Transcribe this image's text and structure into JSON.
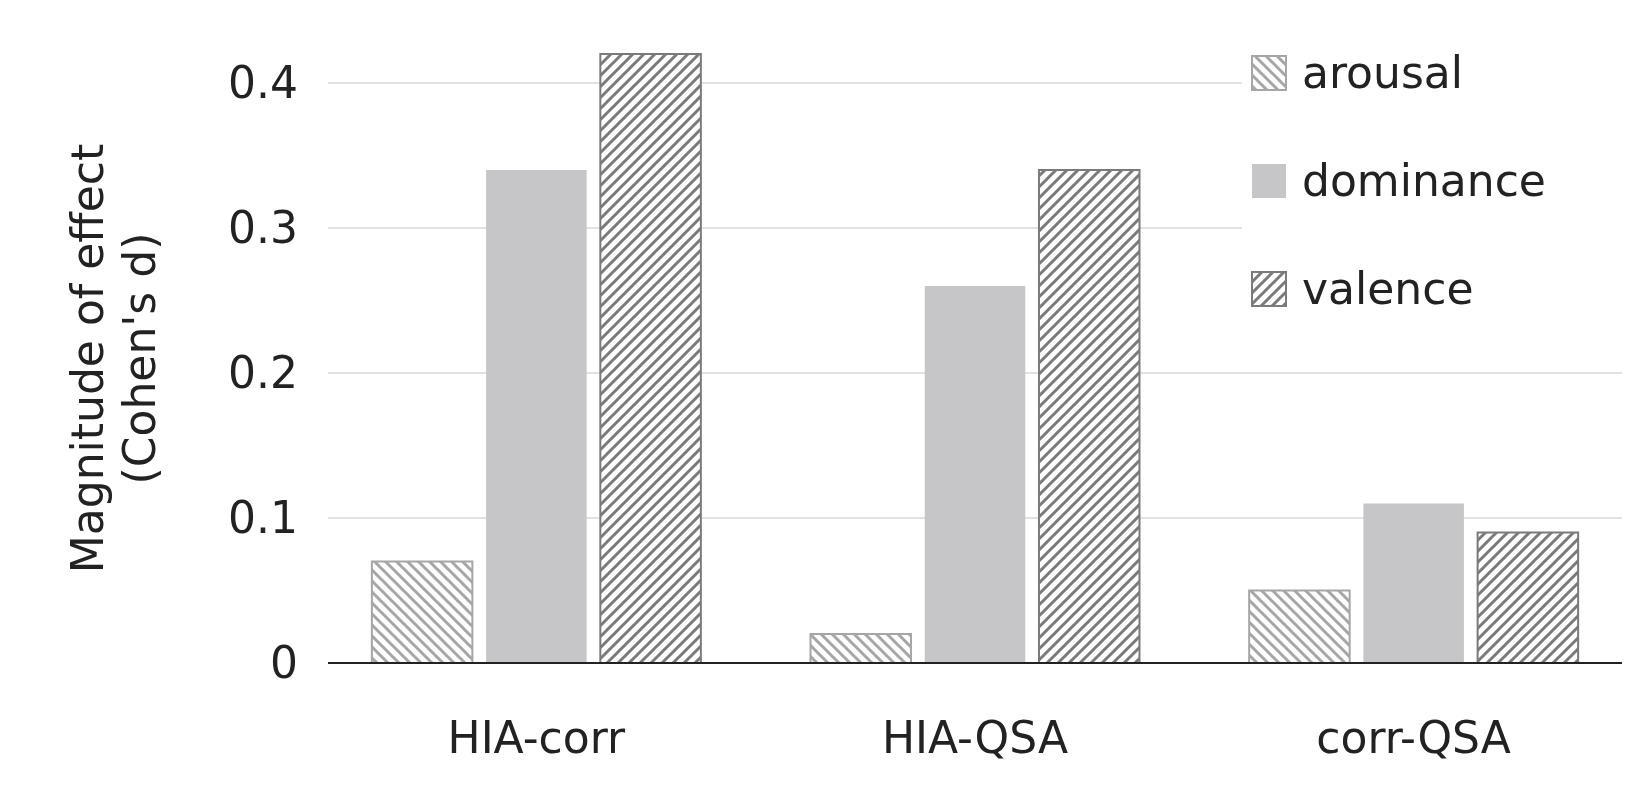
{
  "chart_data": {
    "type": "bar",
    "ylabel": "Magnitude of effect (Cohen's d)",
    "categories": [
      "HIA-corr",
      "HIA-QSA",
      "corr-QSA"
    ],
    "series": [
      {
        "name": "arousal",
        "color": "#a6a6a6",
        "values": [
          0.07,
          0.02,
          0.05
        ]
      },
      {
        "name": "dominance",
        "color": "#c6c6c8",
        "values": [
          0.34,
          0.26,
          0.11
        ]
      },
      {
        "name": "valence",
        "color": "#7a7a7a",
        "values": [
          0.42,
          0.34,
          0.09
        ]
      }
    ],
    "ylim": [
      0,
      0.42
    ],
    "yticks": [
      0,
      0.1,
      0.2,
      0.3,
      0.4
    ],
    "grid": "y",
    "legend": "top right"
  }
}
